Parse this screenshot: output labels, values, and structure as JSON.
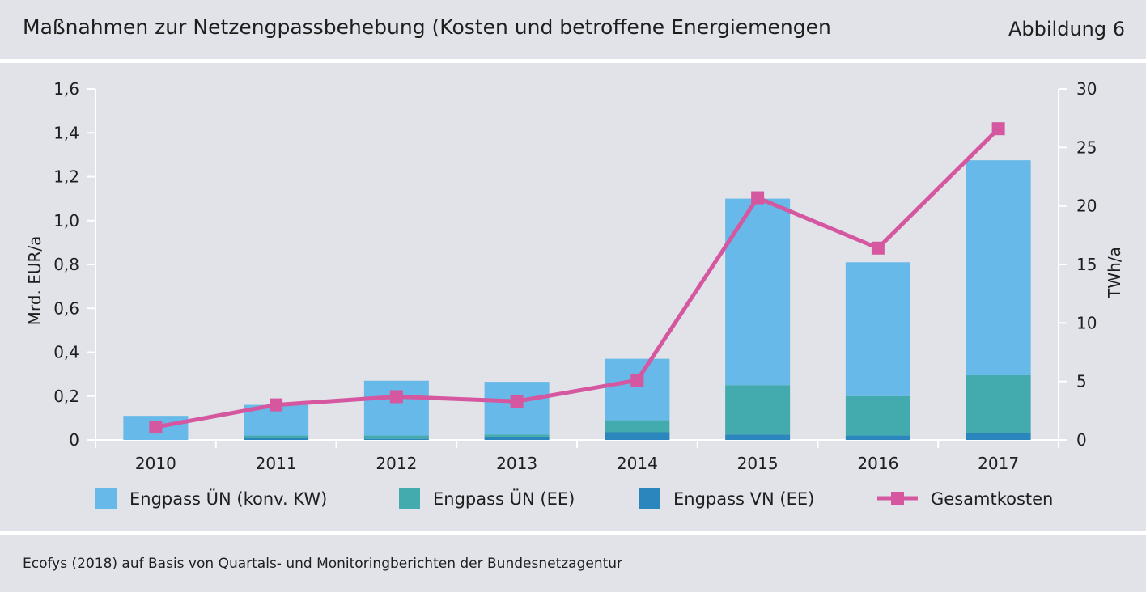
{
  "header": {
    "title": "Maßnahmen zur Netzengpassbehebung (Kosten und betroffene Energiemengen",
    "figure_label": "Abbildung 6"
  },
  "footer": {
    "source": "Ecofys (2018) auf Basis von Quartals- und Monitoringberichten der Bundesnetzagentur"
  },
  "colors": {
    "konv": "#66b9e8",
    "ee_un": "#43aaad",
    "ee_vn": "#2a86bd",
    "gesamt": "#d557a0"
  },
  "chart_data": {
    "type": "bar",
    "stacked": true,
    "categories": [
      "2010",
      "2011",
      "2012",
      "2013",
      "2014",
      "2015",
      "2016",
      "2017"
    ],
    "ylabel": "Mrd. EUR/a",
    "y2label": "TWh/a",
    "ylim": [
      0,
      1.6
    ],
    "y2lim": [
      0,
      30
    ],
    "y_ticks": [
      "0",
      "0,2",
      "0,4",
      "0,6",
      "0,8",
      "1,0",
      "1,2",
      "1,4",
      "1,6"
    ],
    "y2_ticks": [
      "0",
      "5",
      "10",
      "15",
      "20",
      "25",
      "30"
    ],
    "series": [
      {
        "name": "Engpass ÜN (konv. KW)",
        "axis": "left",
        "color_key": "konv",
        "values": [
          0.11,
          0.14,
          0.25,
          0.24,
          0.28,
          0.85,
          0.61,
          0.98
        ]
      },
      {
        "name": "Engpass ÜN (EE)",
        "axis": "left",
        "color_key": "ee_un",
        "values": [
          0.0,
          0.01,
          0.015,
          0.01,
          0.055,
          0.225,
          0.18,
          0.265
        ]
      },
      {
        "name": "Engpass VN (EE)",
        "axis": "left",
        "color_key": "ee_vn",
        "values": [
          0.0,
          0.01,
          0.005,
          0.015,
          0.035,
          0.025,
          0.02,
          0.03
        ]
      }
    ],
    "line": {
      "name": "Gesamtkosten",
      "axis": "right",
      "color_key": "gesamt",
      "values": [
        1.1,
        3.0,
        3.7,
        3.3,
        5.1,
        20.7,
        16.4,
        26.6
      ]
    },
    "legend_position": "bottom",
    "grid": false
  }
}
